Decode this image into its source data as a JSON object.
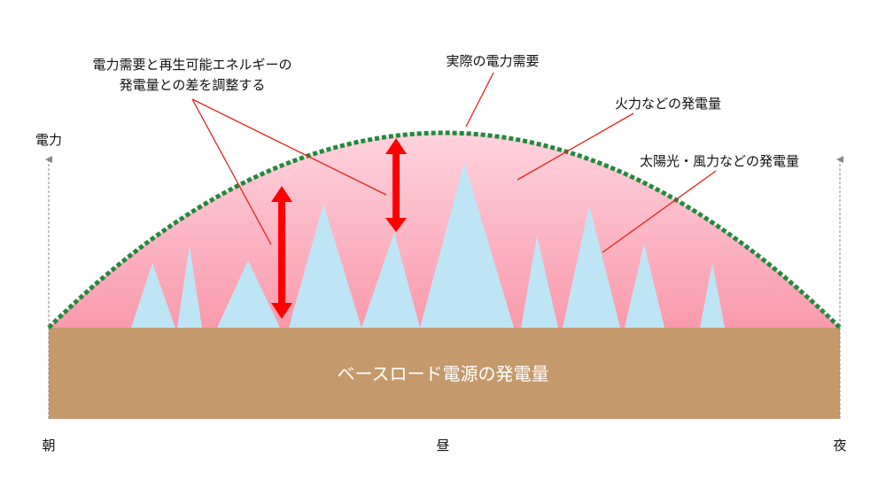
{
  "labels": {
    "adjust_line1": "電力需要と再生可能エネルギーの",
    "adjust_line2": "発電量との差を調整する",
    "actual_demand": "実際の電力需要",
    "thermal": "火力などの発電量",
    "solar_wind": "太陽光・風力などの発電量",
    "power_axis": "電力",
    "baseload": "ベースロード電源の発電量",
    "morning": "朝",
    "noon": "昼",
    "night": "夜"
  },
  "colors": {
    "baseload": "#c49a6c",
    "thermal_top": "#ffd0dc",
    "thermal_bottom": "#f89aac",
    "renewable": "#bde5f6",
    "demand_line": "#1f8a3b",
    "arrow": "#ff0000",
    "leader": "#e8231c",
    "axis": "#888888"
  }
}
